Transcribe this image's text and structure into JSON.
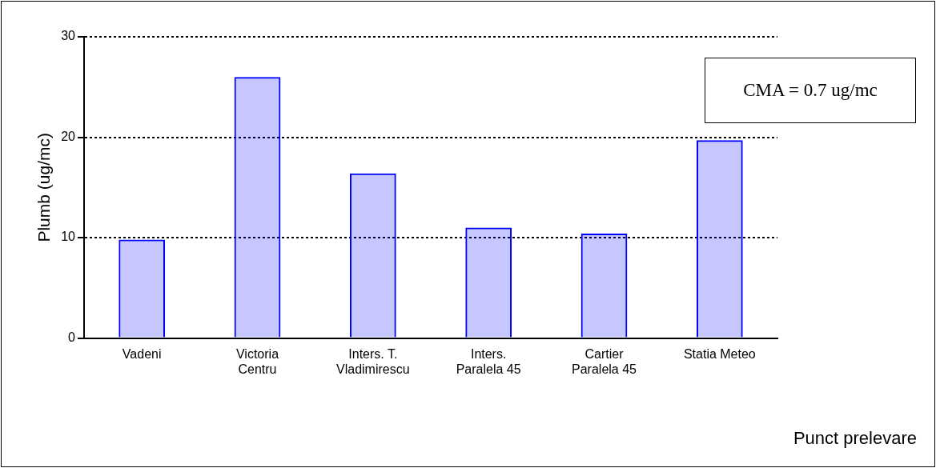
{
  "chart_data": {
    "type": "bar",
    "xlabel": "Punct prelevare",
    "ylabel": "Plumb (ug/mc)",
    "categories": [
      "Vadeni",
      "Victoria Centru",
      "Inters. T. Vladimirescu",
      "Inters. Paralela 45",
      "Cartier Paralela 45",
      "Statia Meteo"
    ],
    "values": [
      9.8,
      26,
      16.4,
      11,
      10.4,
      19.7
    ],
    "color": "#0000ff",
    "ylim": [
      0,
      30
    ],
    "yticks": [
      0,
      10,
      20,
      30
    ],
    "grid": "y",
    "legend": false,
    "annotations": [
      "CMA = 0.7 ug/mc"
    ]
  }
}
